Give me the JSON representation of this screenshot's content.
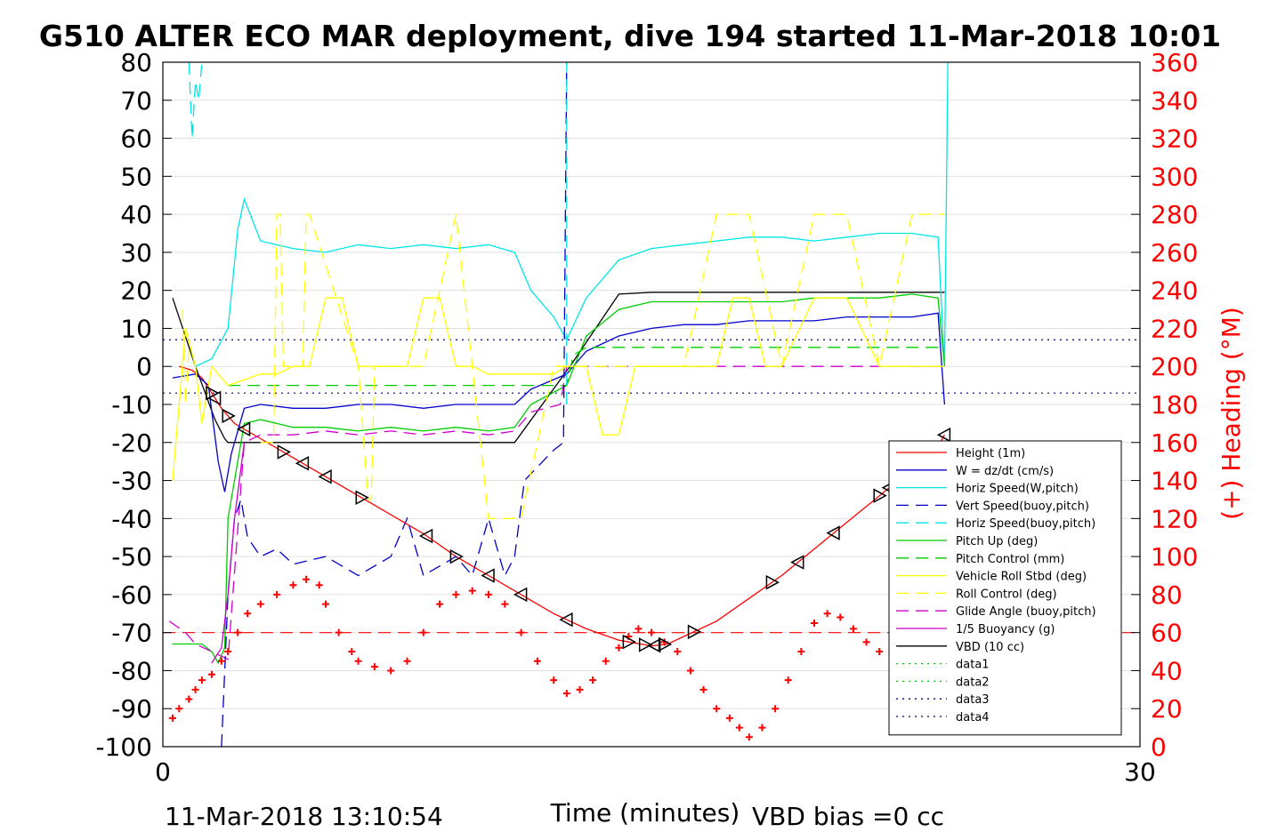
{
  "chart_data": {
    "type": "line",
    "title": "G510 ALTER ECO MAR deployment, dive 194 started 11-Mar-2018 10:01",
    "xlabel": "Time (minutes)",
    "ylabel_right": "(+) Heading (°M)",
    "xlim": [
      0,
      30
    ],
    "ylim": [
      -100,
      80
    ],
    "y2lim": [
      0,
      360
    ],
    "x_ticks": [
      "0",
      "30"
    ],
    "y_ticks": [
      "80",
      "70",
      "60",
      "50",
      "40",
      "30",
      "20",
      "10",
      "0",
      "-10",
      "-20",
      "-30",
      "-40",
      "-50",
      "-60",
      "-70",
      "-80",
      "-90",
      "-100"
    ],
    "y2_ticks": [
      "360",
      "340",
      "320",
      "300",
      "280",
      "260",
      "240",
      "220",
      "200",
      "180",
      "160",
      "140",
      "120",
      "100",
      "80",
      "60",
      "40",
      "20",
      "0"
    ],
    "grid": true,
    "legend_position": "right",
    "footer_left": "11-Mar-2018 13:10:54",
    "footer_right": "VBD bias =0 cc",
    "legend": [
      {
        "label": "Height (1m)",
        "color": "#ff0000",
        "dash": "solid"
      },
      {
        "label": "W = dz/dt (cm/s)",
        "color": "#0000cc",
        "dash": "solid"
      },
      {
        "label": "Horiz Speed(W,pitch)",
        "color": "#00e5e5",
        "dash": "solid"
      },
      {
        "label": "Vert Speed(buoy,pitch)",
        "color": "#0000cc",
        "dash": "dash"
      },
      {
        "label": "Horiz Speed(buoy,pitch)",
        "color": "#00e5e5",
        "dash": "dash"
      },
      {
        "label": "Pitch Up (deg)",
        "color": "#00cc00",
        "dash": "solid"
      },
      {
        "label": "Pitch Control (mm)",
        "color": "#00cc00",
        "dash": "dash"
      },
      {
        "label": "Vehicle Roll Stbd (deg)",
        "color": "#ffff00",
        "dash": "solid"
      },
      {
        "label": "Roll Control (deg)",
        "color": "#ffff00",
        "dash": "dash"
      },
      {
        "label": "Glide Angle (buoy,pitch)",
        "color": "#cc00cc",
        "dash": "dash"
      },
      {
        "label": "1/5 Buoyancy (g)",
        "color": "#cc00cc",
        "dash": "solid"
      },
      {
        "label": "VBD (10 cc)",
        "color": "#000000",
        "dash": "solid"
      },
      {
        "label": "data1",
        "color": "#00cc00",
        "dash": "dot"
      },
      {
        "label": "data2",
        "color": "#00cc00",
        "dash": "dot"
      },
      {
        "label": "data3",
        "color": "#000080",
        "dash": "dot"
      },
      {
        "label": "data4",
        "color": "#000080",
        "dash": "dot"
      }
    ],
    "series": [
      {
        "key": "height",
        "color": "#ff0000",
        "dash": "solid",
        "x": [
          0.5,
          0.9,
          1.2,
          1.5,
          1.8,
          2.2,
          3,
          4,
          5,
          6,
          7,
          8,
          9,
          10,
          11,
          12,
          13,
          14,
          15,
          15.5,
          16,
          17,
          18,
          19,
          20,
          21,
          22,
          23,
          23.8,
          24
        ],
        "y": [
          0,
          -1,
          -3,
          -7,
          -11,
          -15,
          -19,
          -24,
          -29,
          -34,
          -39,
          -44,
          -50,
          -55,
          -60,
          -65,
          -69,
          -72,
          -73.5,
          -73,
          -71,
          -67,
          -61,
          -55,
          -48,
          -41,
          -34,
          -27,
          -21,
          -18
        ]
      },
      {
        "key": "vbd",
        "color": "#000000",
        "dash": "solid",
        "x": [
          0.3,
          1,
          1.6,
          1.9,
          2,
          10.8,
          12.5,
          14,
          15,
          24
        ],
        "y": [
          18,
          0,
          -14,
          -19,
          -20,
          -20,
          0,
          19,
          19.5,
          19.5
        ]
      },
      {
        "key": "w",
        "color": "#0000cc",
        "dash": "solid",
        "x": [
          0.3,
          1,
          1.4,
          1.7,
          1.9,
          2.1,
          2.5,
          3,
          4,
          5,
          6,
          7,
          8,
          9,
          10,
          10.8,
          11.3,
          12.4,
          13,
          14,
          15,
          16,
          17,
          18,
          19,
          20,
          21,
          22,
          23,
          23.8,
          24
        ],
        "y": [
          -3,
          -2,
          -5,
          -25,
          -33,
          -23,
          -11,
          -10,
          -11,
          -11,
          -10,
          -10,
          -11,
          -10,
          -10,
          -10,
          -6,
          -2,
          4,
          8,
          10,
          11,
          11,
          12,
          12,
          12,
          13,
          13,
          13,
          14,
          -10
        ]
      },
      {
        "key": "horiz_w",
        "color": "#00e5e5",
        "dash": "solid",
        "x": [
          1,
          1.5,
          2,
          2.3,
          2.5,
          3,
          4,
          5,
          6,
          7,
          8,
          9,
          10,
          10.8,
          11.3,
          12,
          12.4,
          13,
          14,
          15,
          16,
          17,
          18,
          19,
          20,
          21,
          22,
          23,
          23.8,
          24,
          24.1
        ],
        "y": [
          0,
          2,
          10,
          36,
          44,
          33,
          31,
          30,
          32,
          31,
          32,
          31,
          32,
          30,
          20,
          13,
          7,
          18,
          28,
          31,
          32,
          33,
          34,
          34,
          33,
          34,
          35,
          35,
          34,
          0,
          80
        ]
      },
      {
        "key": "pitch_up",
        "color": "#00cc00",
        "dash": "solid",
        "x": [
          0.3,
          1.2,
          1.5,
          1.7,
          1.9,
          2,
          2.5,
          3,
          4,
          5,
          6,
          7,
          8,
          9,
          10,
          10.8,
          11.3,
          12.4,
          13,
          14,
          15,
          16,
          17,
          18,
          19,
          20,
          21,
          22,
          23,
          23.8,
          24
        ],
        "y": [
          -73,
          -73,
          -75,
          -78,
          -74,
          -40,
          -15,
          -14,
          -16,
          -16,
          -17,
          -16,
          -17,
          -16,
          -17,
          -16,
          -10,
          -5,
          8,
          15,
          17,
          17,
          17,
          17,
          17,
          18,
          18,
          18,
          19,
          18,
          0
        ]
      },
      {
        "key": "pitch_ctrl",
        "color": "#00cc00",
        "dash": "dash",
        "x": [
          2,
          10.8,
          12.4,
          12.6,
          13,
          24
        ],
        "y": [
          -5,
          -5,
          -5,
          3,
          5,
          5
        ]
      },
      {
        "key": "glide",
        "color": "#cc00cc",
        "dash": "dash",
        "x": [
          0.2,
          0.7,
          1,
          1.5,
          2,
          2.5,
          3,
          4,
          5,
          6,
          7,
          8,
          9,
          10,
          10.8,
          11.3,
          12.2,
          12.4,
          24
        ],
        "y": [
          -67,
          -70,
          -73,
          -75,
          -77,
          -20,
          -18,
          -18,
          -17,
          -18,
          -17,
          -18,
          -17,
          -18,
          -17,
          -12,
          -10,
          0,
          0
        ]
      },
      {
        "key": "vert_buoy",
        "color": "#0000cc",
        "dash": "dash",
        "x": [
          1.8,
          2,
          2.2,
          2.4,
          2.6,
          3,
          3.5,
          4,
          5,
          6,
          7,
          7.5,
          8,
          9,
          9.5,
          10,
          10.5,
          10.8,
          11.1,
          12,
          12.3,
          12.4
        ],
        "y": [
          -100,
          -60,
          -40,
          -35,
          -45,
          -50,
          -48,
          -52,
          -50,
          -55,
          -50,
          -40,
          -55,
          -50,
          -55,
          -40,
          -55,
          -50,
          -30,
          -22,
          -20,
          80
        ]
      },
      {
        "key": "horiz_buoy",
        "color": "#00e5e5",
        "dash": "dash",
        "x": [
          0.8,
          0.9,
          1,
          1.1,
          1.2
        ],
        "y": [
          80,
          60,
          75,
          70,
          80
        ]
      },
      {
        "key": "roll",
        "color": "#ffff00",
        "dash": "solid",
        "x": [
          0.3,
          0.7,
          1,
          1.2,
          1.5,
          2,
          3,
          3.5,
          4,
          4.5,
          5,
          5.5,
          6,
          6.5,
          7,
          7.5,
          8,
          8.5,
          9,
          9.5,
          10,
          10.5,
          11,
          11.5,
          12,
          12.4,
          13,
          13.5,
          14,
          14.5,
          15,
          16,
          17,
          17.5,
          18,
          18.5,
          19,
          20,
          21,
          22,
          23,
          24
        ],
        "y": [
          -30,
          10,
          0,
          -15,
          0,
          -5,
          -2,
          -2,
          0,
          0,
          18,
          18,
          0,
          0,
          0,
          0,
          18,
          18,
          0,
          0,
          -2,
          -2,
          -2,
          -2,
          -2,
          0,
          0,
          -18,
          -18,
          0,
          0,
          0,
          0,
          18,
          18,
          0,
          0,
          18,
          18,
          0,
          0,
          0
        ]
      },
      {
        "key": "roll_ctrl",
        "color": "#ffff00",
        "dash": "dash",
        "x": [
          3,
          3.4,
          3.5,
          3.6,
          3.7,
          4,
          4.3,
          4.4,
          4.5,
          6,
          6.3,
          6.4,
          6.5,
          7,
          8,
          9,
          10,
          11,
          12,
          13,
          14,
          15,
          16,
          17,
          18,
          19,
          20,
          21,
          22,
          23,
          24
        ],
        "y": [
          -20,
          -20,
          40,
          40,
          0,
          0,
          0,
          40,
          40,
          0,
          -35,
          -35,
          0,
          0,
          0,
          40,
          -40,
          -40,
          0,
          0,
          0,
          0,
          0,
          40,
          40,
          0,
          40,
          40,
          0,
          40,
          40
        ]
      }
    ],
    "heading": {
      "axis": "right",
      "marker": "plus",
      "color": "#ff0000",
      "x": [
        0.3,
        0.5,
        0.8,
        1,
        1.2,
        1.5,
        1.8,
        2,
        2.3,
        2.6,
        3,
        3.5,
        4,
        4.4,
        4.8,
        5,
        5.4,
        5.8,
        6,
        6.5,
        7,
        7.5,
        8,
        8.5,
        9,
        9.5,
        10,
        10.5,
        11,
        11.5,
        12,
        12.4,
        12.8,
        13.2,
        13.6,
        14,
        14.3,
        14.6,
        15,
        15.4,
        15.8,
        16.2,
        16.6,
        17,
        17.4,
        17.7,
        18,
        18.4,
        18.8,
        19.2,
        19.6,
        20,
        20.4,
        20.8,
        21.2,
        21.6,
        22,
        22.4,
        22.8,
        23.2,
        23.6,
        24
      ],
      "y": [
        15,
        20,
        25,
        30,
        35,
        38,
        45,
        50,
        60,
        70,
        75,
        80,
        85,
        88,
        85,
        75,
        60,
        50,
        45,
        42,
        40,
        45,
        60,
        75,
        80,
        82,
        80,
        75,
        60,
        45,
        35,
        28,
        30,
        35,
        45,
        52,
        58,
        62,
        60,
        55,
        50,
        40,
        30,
        20,
        15,
        10,
        5,
        10,
        20,
        35,
        50,
        65,
        70,
        68,
        62,
        55,
        50,
        60,
        65,
        58,
        50,
        40
      ]
    },
    "extra_series": [
      {
        "key": "buoyancy_drop",
        "color": "#cc00cc",
        "dash": "solid",
        "x": [
          1.5,
          1.8,
          2,
          2.2,
          2.5
        ],
        "y": [
          -78,
          -74,
          -60,
          -40,
          -20
        ]
      },
      {
        "key": "horiz_buoy_spike",
        "color": "#00e5e5",
        "dash": "dash",
        "x": [
          12.4,
          12.4
        ],
        "y": [
          -10,
          80
        ]
      },
      {
        "key": "roll_ctrl_init",
        "color": "#ffff00",
        "dash": "dash",
        "x": [
          0.6,
          0.7,
          0.8
        ],
        "y": [
          15,
          -10,
          5
        ]
      }
    ],
    "hlines": [
      {
        "y": 7,
        "color": "#000080",
        "dash": "dot"
      },
      {
        "y": -7,
        "color": "#000080",
        "dash": "dot"
      },
      {
        "y2": 60,
        "color": "#ff0000",
        "dash": "dash"
      }
    ],
    "triangles_right": [
      1.5,
      2,
      3.7,
      6.1,
      9,
      14.3,
      14.8,
      15.4,
      16.3,
      18.7,
      22,
      23.6
    ],
    "triangles_left": [
      1.6,
      2.5,
      4.3,
      5,
      8.1,
      10,
      11,
      12.4,
      15.1,
      19.5,
      20.6,
      22.3,
      24
    ]
  }
}
